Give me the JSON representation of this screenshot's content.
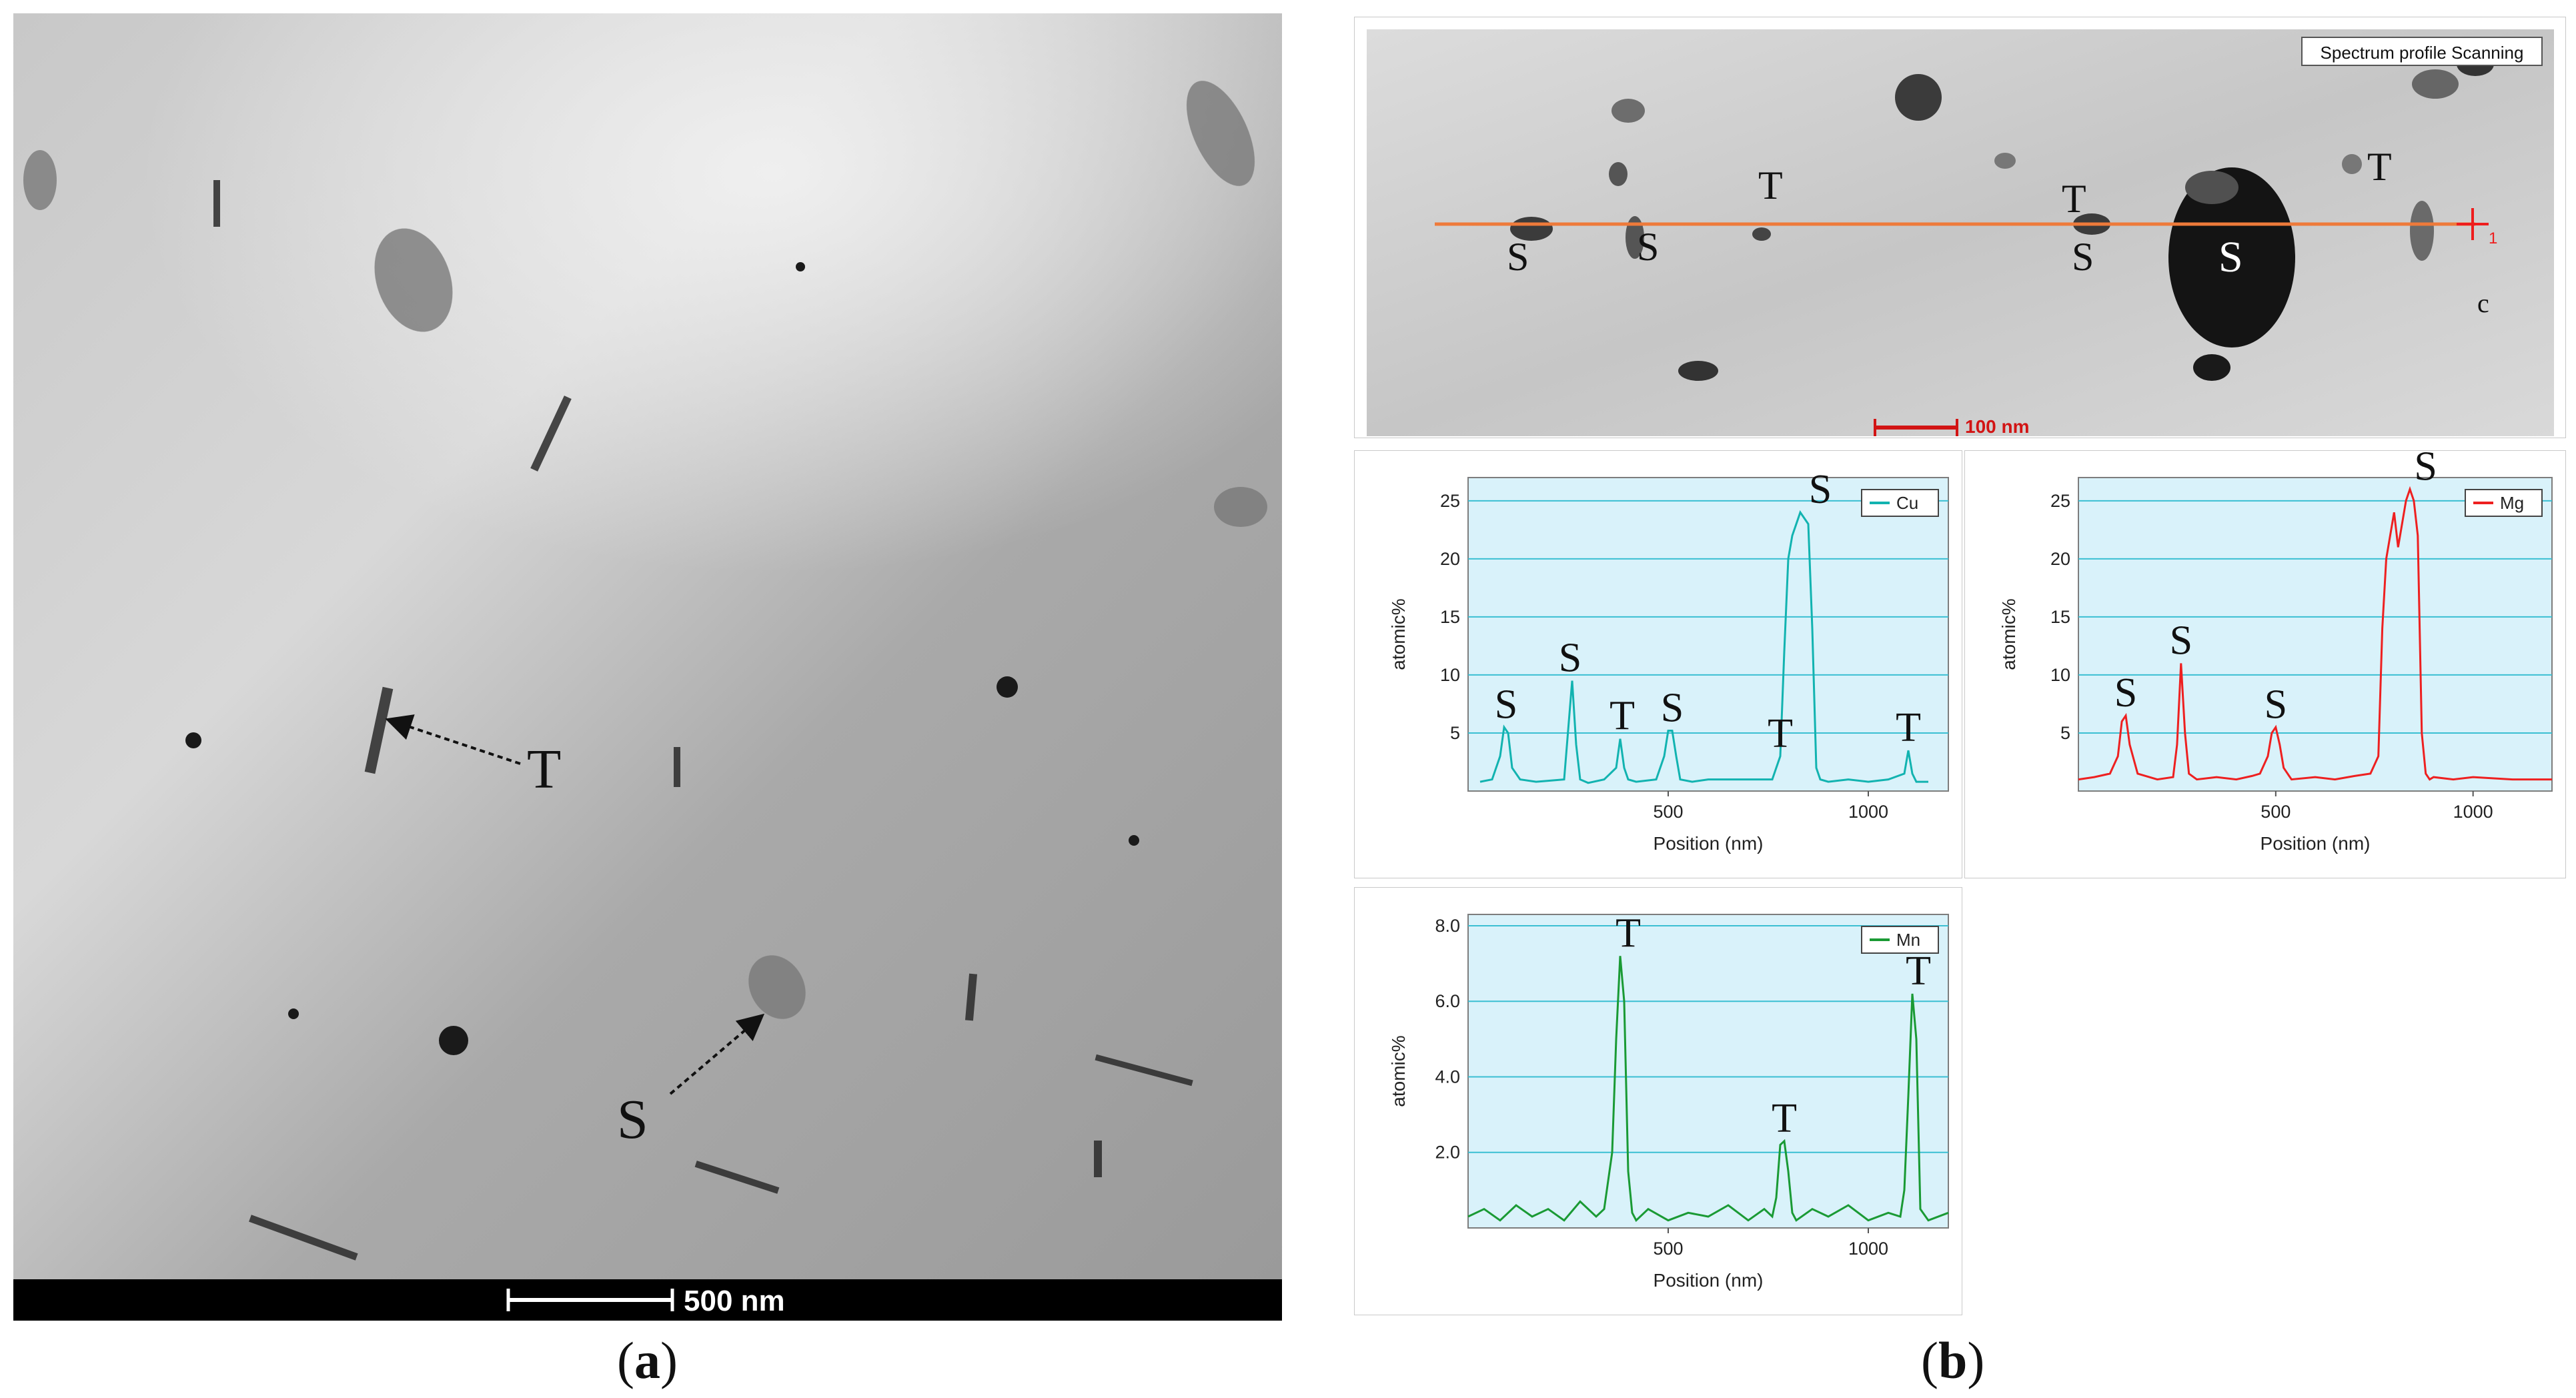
{
  "panel_a": {
    "scalebar_label": "500 nm",
    "markers": [
      {
        "id": "T",
        "label": "T"
      },
      {
        "id": "S",
        "label": "S"
      }
    ],
    "caption": {
      "open": "(",
      "letter": "a",
      "close": ")"
    }
  },
  "panel_b": {
    "image": {
      "title_box": "Spectrum profile Scanning",
      "scalebar_label": "100 nm",
      "line_end_label": "1",
      "corner_label": "c",
      "particle_labels": [
        "S",
        "S",
        "T",
        "S",
        "T",
        "S",
        "T"
      ]
    },
    "caption": {
      "open": "(",
      "letter": "b",
      "close": ")"
    }
  },
  "chart_data": [
    {
      "type": "line",
      "series": [
        {
          "name": "Cu",
          "color": "#12b3b0",
          "x": [
            30,
            60,
            80,
            90,
            100,
            110,
            130,
            170,
            240,
            260,
            270,
            280,
            300,
            340,
            370,
            380,
            390,
            400,
            420,
            470,
            490,
            500,
            510,
            520,
            530,
            560,
            600,
            700,
            760,
            780,
            790,
            800,
            810,
            820,
            830,
            840,
            850,
            860,
            870,
            880,
            900,
            950,
            1000,
            1050,
            1090,
            1100,
            1110,
            1120,
            1150
          ],
          "values": [
            0.8,
            1,
            3,
            5.5,
            5,
            2,
            1,
            0.8,
            1,
            9.5,
            4,
            1,
            0.7,
            1,
            2,
            4.5,
            2,
            1,
            0.8,
            1,
            3,
            5.2,
            5.2,
            3,
            1,
            0.8,
            1,
            1,
            1,
            3,
            12,
            20,
            22,
            23,
            24,
            23.5,
            23,
            14,
            2,
            1,
            0.8,
            1,
            0.8,
            1,
            1.5,
            3.5,
            1.5,
            0.8,
            0.8
          ]
        }
      ],
      "xlabel": "Position (nm)",
      "ylabel": "atomic%",
      "xlim": [
        0,
        1200
      ],
      "ylim": [
        0,
        27
      ],
      "xticks": [
        500,
        1000
      ],
      "yticks": [
        5,
        10,
        15,
        20,
        25
      ],
      "grid": true,
      "legend": "top-right",
      "annotations": [
        "S",
        "S",
        "T",
        "S",
        "T",
        "S",
        "T"
      ]
    },
    {
      "type": "line",
      "series": [
        {
          "name": "Mg",
          "color": "#ee2020",
          "x": [
            0,
            40,
            80,
            100,
            110,
            120,
            130,
            150,
            200,
            240,
            250,
            260,
            270,
            280,
            300,
            350,
            400,
            440,
            460,
            480,
            490,
            500,
            510,
            520,
            540,
            600,
            650,
            700,
            740,
            760,
            770,
            780,
            790,
            800,
            810,
            820,
            830,
            840,
            850,
            860,
            870,
            880,
            890,
            900,
            950,
            1000,
            1100,
            1200
          ],
          "values": [
            1,
            1.2,
            1.5,
            3,
            6,
            6.5,
            4,
            1.5,
            1,
            1.2,
            4,
            11,
            5,
            1.5,
            1,
            1.2,
            1,
            1.3,
            1.5,
            3,
            5,
            5.5,
            4,
            2,
            1,
            1.2,
            1,
            1.3,
            1.5,
            3,
            14,
            20,
            22,
            24,
            21,
            23,
            25,
            26,
            25,
            22,
            5,
            1.5,
            1,
            1.2,
            1,
            1.2,
            1,
            1
          ]
        }
      ],
      "xlabel": "Position (nm)",
      "ylabel": "atomic%",
      "xlim": [
        0,
        1200
      ],
      "ylim": [
        0,
        27
      ],
      "xticks": [
        500,
        1000
      ],
      "yticks": [
        5,
        10,
        15,
        20,
        25
      ],
      "grid": true,
      "legend": "top-right",
      "annotations": [
        "S",
        "S",
        "S",
        "S"
      ]
    },
    {
      "type": "line",
      "series": [
        {
          "name": "Mn",
          "color": "#1a9a34",
          "x": [
            0,
            40,
            80,
            120,
            160,
            200,
            240,
            280,
            320,
            340,
            360,
            370,
            380,
            390,
            400,
            410,
            420,
            450,
            500,
            550,
            600,
            650,
            700,
            740,
            760,
            770,
            780,
            790,
            800,
            810,
            820,
            860,
            900,
            950,
            1000,
            1050,
            1080,
            1090,
            1100,
            1110,
            1120,
            1130,
            1150,
            1200
          ],
          "values": [
            0.3,
            0.5,
            0.2,
            0.6,
            0.3,
            0.5,
            0.2,
            0.7,
            0.3,
            0.5,
            2,
            5,
            7.2,
            6,
            1.5,
            0.4,
            0.2,
            0.5,
            0.2,
            0.4,
            0.3,
            0.6,
            0.2,
            0.5,
            0.3,
            0.8,
            2.2,
            2.3,
            1.5,
            0.4,
            0.2,
            0.5,
            0.3,
            0.6,
            0.2,
            0.4,
            0.3,
            1,
            3.5,
            6.2,
            5,
            0.5,
            0.2,
            0.4
          ]
        }
      ],
      "xlabel": "Position (nm)",
      "ylabel": "atomic%",
      "xlim": [
        0,
        1200
      ],
      "ylim": [
        0,
        8.3
      ],
      "xticks": [
        500,
        1000
      ],
      "yticks": [
        2.0,
        4.0,
        6.0,
        8.0
      ],
      "ytick_labels": [
        "2.0",
        "4.0",
        "6.0",
        "8.0"
      ],
      "grid": true,
      "legend": "top-right",
      "annotations": [
        "T",
        "T",
        "T"
      ]
    }
  ]
}
